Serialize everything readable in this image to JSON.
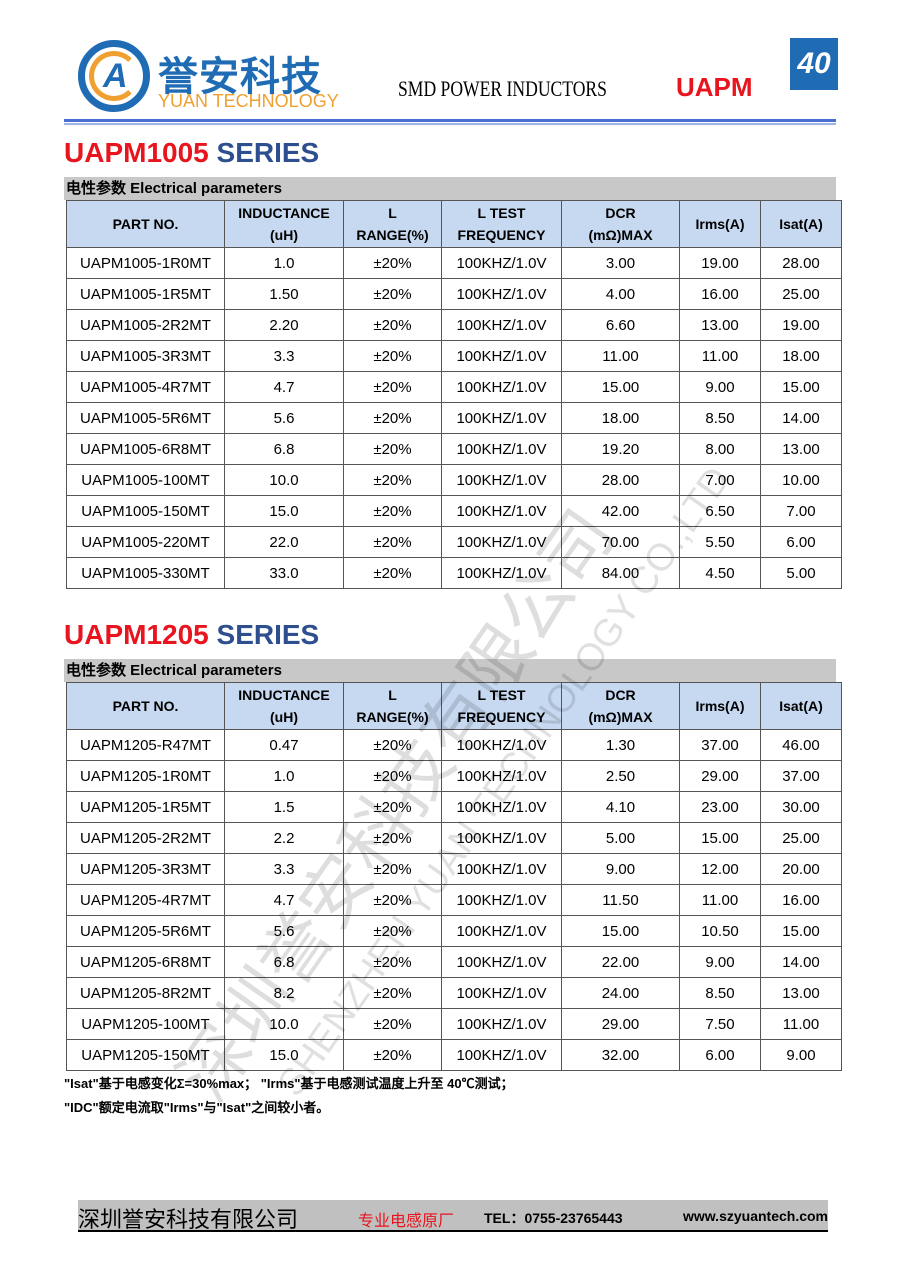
{
  "header": {
    "logo_cn": "誉安科技",
    "logo_en": "YUAN TECHNOLOGY",
    "title": "SMD POWER INDUCTORS",
    "series": "UAPM",
    "page": "40"
  },
  "columns": [
    "PART NO.",
    "INDUCTANCE (uH)",
    "L RANGE(%)",
    "L TEST FREQUENCY",
    "DCR (mΩ)MAX",
    "Irms(A)",
    "Isat(A)"
  ],
  "params_label": "电性参数 Electrical parameters",
  "tables": [
    {
      "title_model": "UAPM1005",
      "title_series": "SERIES",
      "rows": [
        [
          "UAPM1005-1R0MT",
          "1.0",
          "±20%",
          "100KHZ/1.0V",
          "3.00",
          "19.00",
          "28.00"
        ],
        [
          "UAPM1005-1R5MT",
          "1.50",
          "±20%",
          "100KHZ/1.0V",
          "4.00",
          "16.00",
          "25.00"
        ],
        [
          "UAPM1005-2R2MT",
          "2.20",
          "±20%",
          "100KHZ/1.0V",
          "6.60",
          "13.00",
          "19.00"
        ],
        [
          "UAPM1005-3R3MT",
          "3.3",
          "±20%",
          "100KHZ/1.0V",
          "11.00",
          "11.00",
          "18.00"
        ],
        [
          "UAPM1005-4R7MT",
          "4.7",
          "±20%",
          "100KHZ/1.0V",
          "15.00",
          "9.00",
          "15.00"
        ],
        [
          "UAPM1005-5R6MT",
          "5.6",
          "±20%",
          "100KHZ/1.0V",
          "18.00",
          "8.50",
          "14.00"
        ],
        [
          "UAPM1005-6R8MT",
          "6.8",
          "±20%",
          "100KHZ/1.0V",
          "19.20",
          "8.00",
          "13.00"
        ],
        [
          "UAPM1005-100MT",
          "10.0",
          "±20%",
          "100KHZ/1.0V",
          "28.00",
          "7.00",
          "10.00"
        ],
        [
          "UAPM1005-150MT",
          "15.0",
          "±20%",
          "100KHZ/1.0V",
          "42.00",
          "6.50",
          "7.00"
        ],
        [
          "UAPM1005-220MT",
          "22.0",
          "±20%",
          "100KHZ/1.0V",
          "70.00",
          "5.50",
          "6.00"
        ],
        [
          "UAPM1005-330MT",
          "33.0",
          "±20%",
          "100KHZ/1.0V",
          "84.00",
          "4.50",
          "5.00"
        ]
      ]
    },
    {
      "title_model": "UAPM1205",
      "title_series": "SERIES",
      "rows": [
        [
          "UAPM1205-R47MT",
          "0.47",
          "±20%",
          "100KHZ/1.0V",
          "1.30",
          "37.00",
          "46.00"
        ],
        [
          "UAPM1205-1R0MT",
          "1.0",
          "±20%",
          "100KHZ/1.0V",
          "2.50",
          "29.00",
          "37.00"
        ],
        [
          "UAPM1205-1R5MT",
          "1.5",
          "±20%",
          "100KHZ/1.0V",
          "4.10",
          "23.00",
          "30.00"
        ],
        [
          "UAPM1205-2R2MT",
          "2.2",
          "±20%",
          "100KHZ/1.0V",
          "5.00",
          "15.00",
          "25.00"
        ],
        [
          "UAPM1205-3R3MT",
          "3.3",
          "±20%",
          "100KHZ/1.0V",
          "9.00",
          "12.00",
          "20.00"
        ],
        [
          "UAPM1205-4R7MT",
          "4.7",
          "±20%",
          "100KHZ/1.0V",
          "11.50",
          "11.00",
          "16.00"
        ],
        [
          "UAPM1205-5R6MT",
          "5.6",
          "±20%",
          "100KHZ/1.0V",
          "15.00",
          "10.50",
          "15.00"
        ],
        [
          "UAPM1205-6R8MT",
          "6.8",
          "±20%",
          "100KHZ/1.0V",
          "22.00",
          "9.00",
          "14.00"
        ],
        [
          "UAPM1205-8R2MT",
          "8.2",
          "±20%",
          "100KHZ/1.0V",
          "24.00",
          "8.50",
          "13.00"
        ],
        [
          "UAPM1205-100MT",
          "10.0",
          "±20%",
          "100KHZ/1.0V",
          "29.00",
          "7.50",
          "11.00"
        ],
        [
          "UAPM1205-150MT",
          "15.0",
          "±20%",
          "100KHZ/1.0V",
          "32.00",
          "6.00",
          "9.00"
        ]
      ]
    }
  ],
  "notes": [
    "\"Isat\"基于电感变化Σ=30%max；     \"Irms\"基于电感测试温度上升至 40℃测试；",
    "\"IDC\"额定电流取\"Irms\"与\"Isat\"之间较小者。"
  ],
  "footer": {
    "company": "深圳誉安科技有限公司",
    "slogan": "专业电感原厂",
    "tel": "TEL：0755-23765443",
    "web": "www.szyuantech.com"
  },
  "watermark": {
    "cn": "深圳誉安科技有限公司",
    "en": "SHENZHEN YUAN TECHNOLOGY CO.,LTD"
  }
}
